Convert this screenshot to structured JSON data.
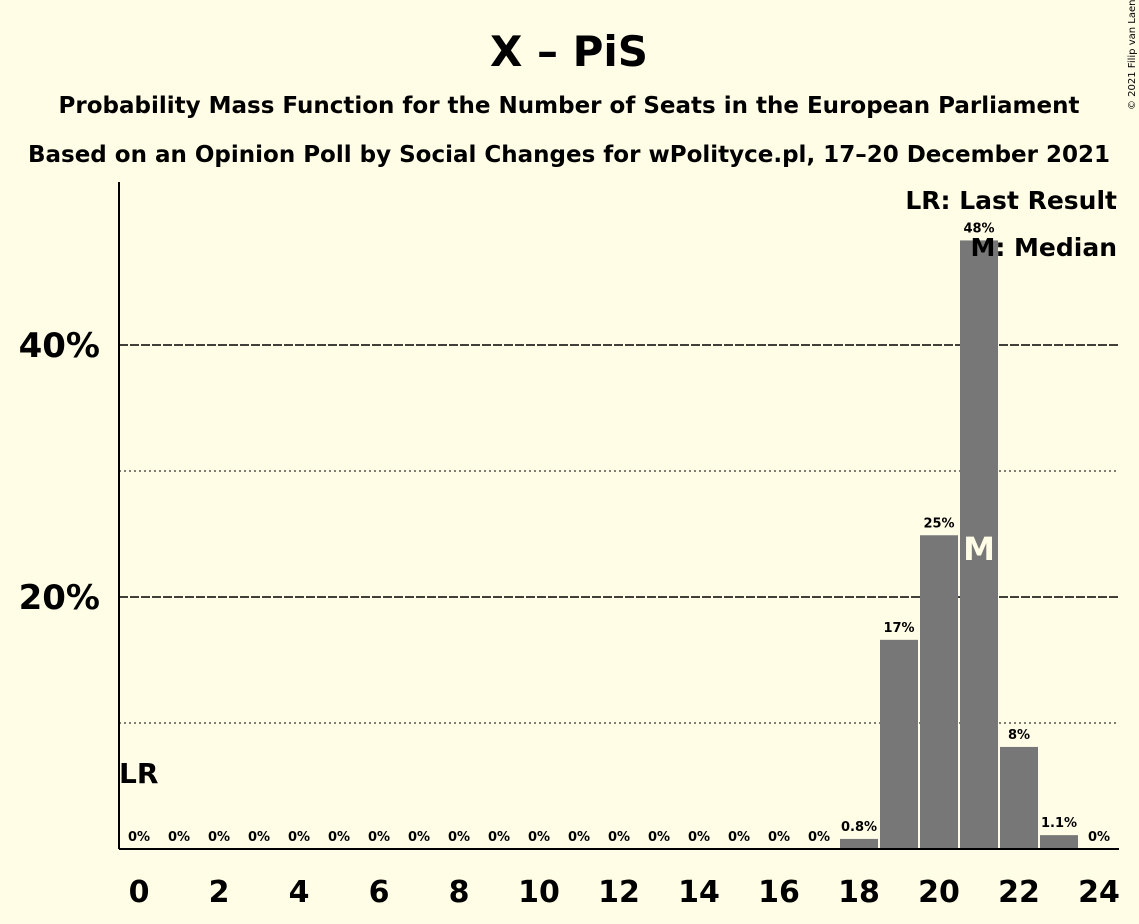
{
  "chart_data": {
    "type": "bar",
    "title": "X – PiS",
    "subtitle": "Probability Mass Function for the Number of Seats in the European Parliament",
    "subtitle2": "Based on an Opinion Poll by Social Changes for wPolityce.pl, 17–20 December 2021",
    "x": [
      0,
      1,
      2,
      3,
      4,
      5,
      6,
      7,
      8,
      9,
      10,
      11,
      12,
      13,
      14,
      15,
      16,
      17,
      18,
      19,
      20,
      21,
      22,
      23,
      24
    ],
    "values": [
      0,
      0,
      0,
      0,
      0,
      0,
      0,
      0,
      0,
      0,
      0,
      0,
      0,
      0,
      0,
      0,
      0,
      0,
      0.8,
      16.6,
      24.9,
      48.3,
      8.1,
      1.1,
      0
    ],
    "data_labels": [
      "0%",
      "0%",
      "0%",
      "0%",
      "0%",
      "0%",
      "0%",
      "0%",
      "0%",
      "0%",
      "0%",
      "0%",
      "0%",
      "0%",
      "0%",
      "0%",
      "0%",
      "0%",
      "0.8%",
      "17%",
      "25%",
      "48%",
      "8%",
      "1.1%",
      "0%"
    ],
    "xticks": [
      "0",
      "2",
      "4",
      "6",
      "8",
      "10",
      "12",
      "14",
      "16",
      "18",
      "20",
      "22",
      "24"
    ],
    "yticks": [
      "20%",
      "40%"
    ],
    "ylim": [
      0,
      52
    ],
    "grid": "dashed major lines at 20% and 40%, dotted minor lines at 10% and 30%",
    "last_result_seat": 0,
    "median_seat": 21,
    "bar_color": "#777777",
    "background_color": "#fffde6",
    "legend": {
      "position": "top-right",
      "last_result": "LR: Last Result",
      "median": "M: Median"
    },
    "lr_marker": "LR",
    "median_marker": "M",
    "copyright": "© 2021 Filip van Laenen"
  }
}
